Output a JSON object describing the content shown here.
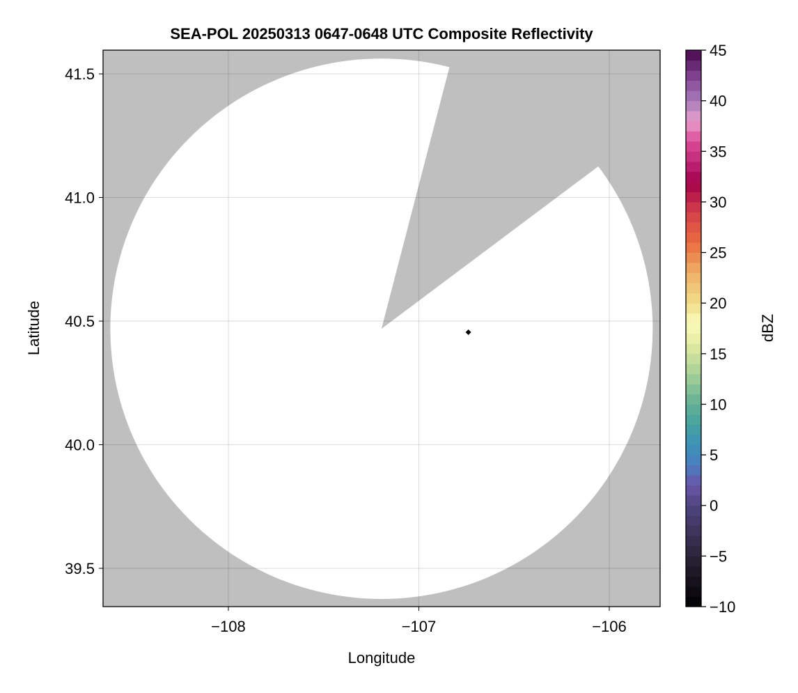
{
  "chart_data": {
    "type": "heatmap",
    "title": "SEA-POL 20250313 0647-0648 UTC Composite Reflectivity",
    "xlabel": "Longitude",
    "ylabel": "Latitude",
    "xlim": [
      -108.658,
      -105.733
    ],
    "ylim": [
      39.345,
      41.596
    ],
    "xticks": [
      -108,
      -107,
      -106
    ],
    "xtick_labels": [
      "−108",
      "−107",
      "−106"
    ],
    "yticks": [
      39.5,
      40.0,
      40.5,
      41.0,
      41.5
    ],
    "ytick_labels": [
      "39.5",
      "40.0",
      "40.5",
      "41.0",
      "41.5"
    ],
    "grid": true,
    "background_color": "#bfbfbf",
    "coverage_color": "#ffffff",
    "coverage": {
      "center": [
        -107.196,
        40.469
      ],
      "radius_lon": 1.424,
      "radius_lat": 1.093,
      "blocked_sector_edges": [
        [
          -106.84,
          41.525
        ],
        [
          -106.066,
          41.121
        ]
      ]
    },
    "markers": [
      {
        "lon": -106.74,
        "lat": 40.455,
        "shape": "diamond",
        "color": "#000000"
      }
    ],
    "colorbar": {
      "label": "dBZ",
      "range": [
        -10,
        45
      ],
      "ticks": [
        -10,
        -5,
        0,
        5,
        10,
        15,
        20,
        25,
        30,
        35,
        40,
        45
      ],
      "tick_labels": [
        "−10",
        "−5",
        "0",
        "5",
        "10",
        "15",
        "20",
        "25",
        "30",
        "35",
        "40",
        "45"
      ],
      "colormap_anchors": [
        [
          -10,
          "#000000"
        ],
        [
          -5,
          "#2a2438"
        ],
        [
          0,
          "#4f4580"
        ],
        [
          2,
          "#6a56a8"
        ],
        [
          4,
          "#4a7ec0"
        ],
        [
          6,
          "#3d92b8"
        ],
        [
          8,
          "#45a39e"
        ],
        [
          10,
          "#62b094"
        ],
        [
          13,
          "#a6d098"
        ],
        [
          16,
          "#e4eca0"
        ],
        [
          18,
          "#fbfbbb"
        ],
        [
          20,
          "#f1dd8a"
        ],
        [
          23,
          "#eeb066"
        ],
        [
          26,
          "#ea6b40"
        ],
        [
          29,
          "#d4404a"
        ],
        [
          32,
          "#a4004a"
        ],
        [
          34,
          "#c02878"
        ],
        [
          36,
          "#dc4a98"
        ],
        [
          38,
          "#e8a0cc"
        ],
        [
          40,
          "#a77ab8"
        ],
        [
          42,
          "#8a4c9a"
        ],
        [
          45,
          "#48084e"
        ]
      ]
    }
  }
}
